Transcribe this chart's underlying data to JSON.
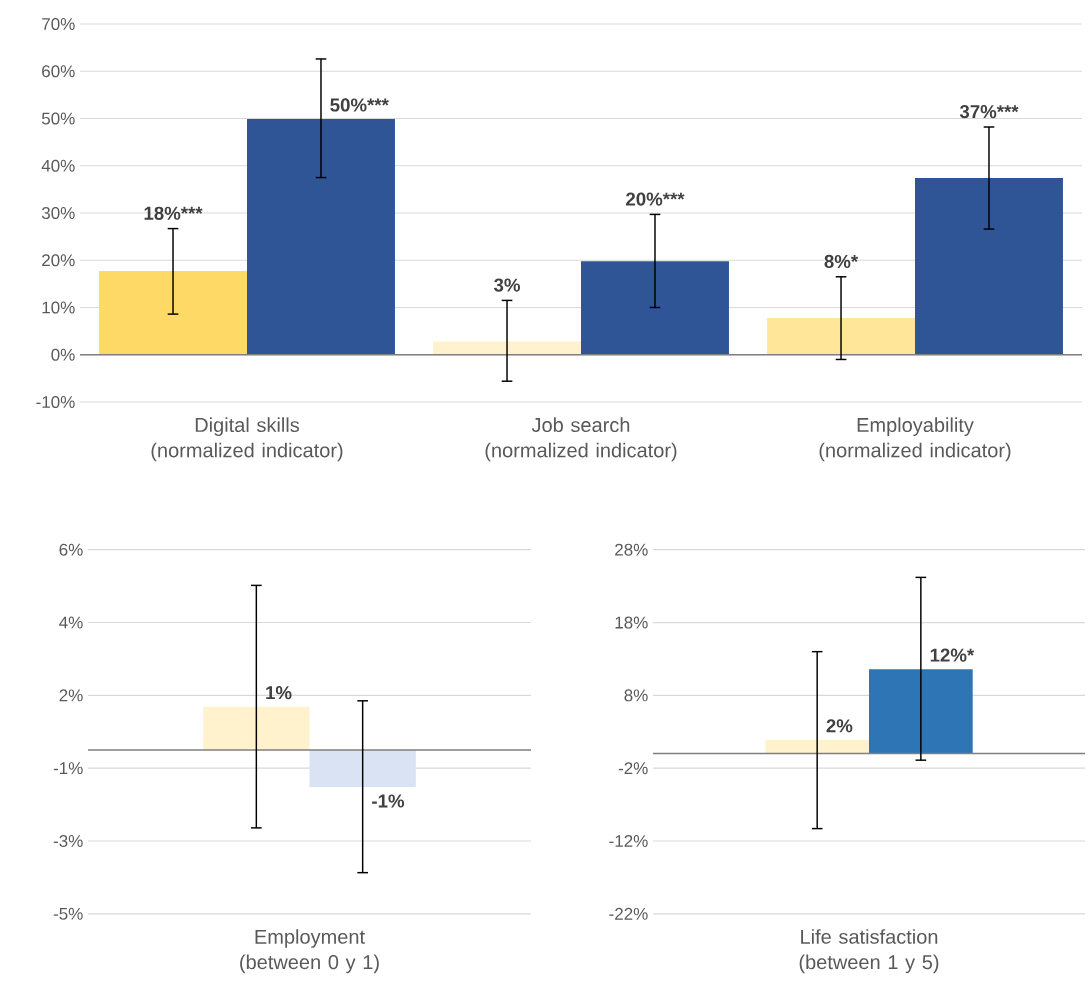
{
  "chart_data": [
    {
      "type": "bar",
      "categories": [
        "Digital skills (normalized indicator)",
        "Job search (normalized indicator)",
        "Employability (normalized indicator)"
      ],
      "series": [
        {
          "colors": [
            "#ffd966",
            "#fff2cc",
            "#ffe699"
          ],
          "values": [
            17.7,
            2.8,
            7.8
          ],
          "errors": [
            [
              8.6,
              26.7
            ],
            [
              -5.6,
              11.5
            ],
            [
              -1.0,
              16.5
            ]
          ],
          "value_labels": [
            "18%***",
            "3%",
            "8%*"
          ]
        },
        {
          "colors": [
            "#2f5597",
            "#2f5597",
            "#2f5597"
          ],
          "values": [
            49.9,
            19.8,
            37.4
          ],
          "errors": [
            [
              37.5,
              62.6
            ],
            [
              10.0,
              29.7
            ],
            [
              26.6,
              48.2
            ]
          ],
          "value_labels": [
            "50%***",
            "20%***",
            "37%***"
          ]
        }
      ],
      "ylim": [
        -10,
        70
      ],
      "yticks": [
        {
          "value": -10,
          "label": "-10%"
        },
        {
          "value": 0,
          "label": "0%"
        },
        {
          "value": 10,
          "label": "10%"
        },
        {
          "value": 20,
          "label": "20%"
        },
        {
          "value": 30,
          "label": "30%"
        },
        {
          "value": 40,
          "label": "40%"
        },
        {
          "value": 50,
          "label": "50%"
        },
        {
          "value": 60,
          "label": "60%"
        },
        {
          "value": 70,
          "label": "70%"
        }
      ],
      "grid": "y"
    },
    {
      "type": "bar",
      "categories": [
        "Employment (between 0 y 1)"
      ],
      "series": [
        {
          "colors": [
            "#fff2cc"
          ],
          "values": [
            1.19
          ],
          "errors": [
            [
              -2.14,
              4.52
            ]
          ],
          "value_labels": [
            "1%"
          ]
        },
        {
          "colors": [
            "#dae3f3"
          ],
          "values": [
            -1.02
          ],
          "errors": [
            [
              -3.37,
              1.35
            ]
          ],
          "value_labels": [
            "-1%"
          ]
        }
      ],
      "ylim": [
        -4.5,
        5.5
      ],
      "yticks": [
        {
          "value": -4.5,
          "label": "-5%"
        },
        {
          "value": -2.5,
          "label": "-3%"
        },
        {
          "value": -0.5,
          "label": "-1%"
        },
        {
          "value": 1.5,
          "label": "2%"
        },
        {
          "value": 3.5,
          "label": "4%"
        },
        {
          "value": 5.5,
          "label": "6%"
        }
      ],
      "grid": "y"
    },
    {
      "type": "bar",
      "categories": [
        "Life satisfaction (between 1 y 5)"
      ],
      "series": [
        {
          "colors": [
            "#fff2cc"
          ],
          "values": [
            1.9
          ],
          "errors": [
            [
              -10.3,
              14.0
            ]
          ],
          "value_labels": [
            "2%"
          ]
        },
        {
          "colors": [
            "#2e75b6"
          ],
          "values": [
            11.6
          ],
          "errors": [
            [
              -0.9,
              24.2
            ]
          ],
          "value_labels": [
            "12%*"
          ]
        }
      ],
      "ylim": [
        -22,
        28
      ],
      "yticks": [
        {
          "value": -22,
          "label": "-22%"
        },
        {
          "value": -12,
          "label": "-12%"
        },
        {
          "value": -2,
          "label": "-2%"
        },
        {
          "value": 8,
          "label": "8%"
        },
        {
          "value": 18,
          "label": "18%"
        },
        {
          "value": 28,
          "label": "28%"
        }
      ],
      "grid": "y"
    }
  ]
}
